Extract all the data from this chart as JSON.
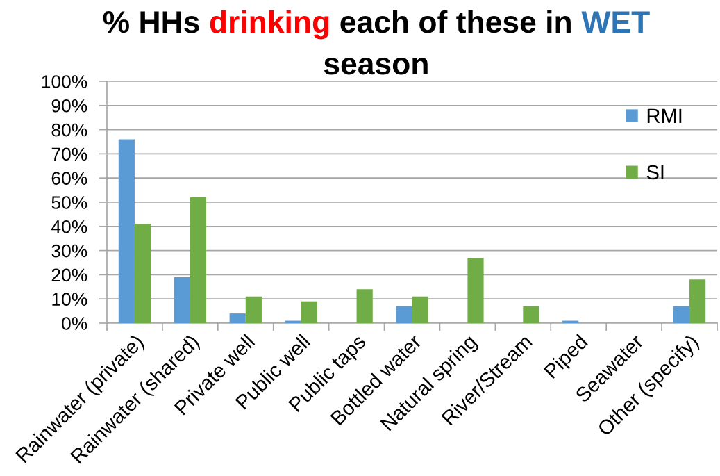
{
  "chart_data": {
    "type": "bar",
    "title": "% HHs drinking each of these in WET season",
    "categories": [
      "Rainwater (private)",
      "Rainwater (shared)",
      "Private well",
      "Public well",
      "Public taps",
      "Bottled water",
      "Natural spring",
      "River/Stream",
      "Piped",
      "Seawater",
      "Other (specify)"
    ],
    "series": [
      {
        "name": "RMI",
        "color": "#5b9bd5",
        "values": [
          76,
          19,
          4,
          1,
          0,
          7,
          0,
          0,
          1,
          0,
          7
        ]
      },
      {
        "name": "SI",
        "color": "#70ad47",
        "values": [
          41,
          52,
          11,
          9,
          14,
          11,
          27,
          7,
          0,
          0,
          18
        ]
      }
    ],
    "ylim": [
      0,
      100
    ],
    "yticks": [
      {
        "value": 0,
        "label": "0%"
      },
      {
        "value": 10,
        "label": "10%"
      },
      {
        "value": 20,
        "label": "20%"
      },
      {
        "value": 30,
        "label": "30%"
      },
      {
        "value": 40,
        "label": "40%"
      },
      {
        "value": 50,
        "label": "50%"
      },
      {
        "value": 60,
        "label": "60%"
      },
      {
        "value": 70,
        "label": "70%"
      },
      {
        "value": 80,
        "label": "80%"
      },
      {
        "value": 90,
        "label": "90%"
      },
      {
        "value": 100,
        "label": "100%"
      }
    ],
    "grid": "y",
    "legend": "top right"
  }
}
